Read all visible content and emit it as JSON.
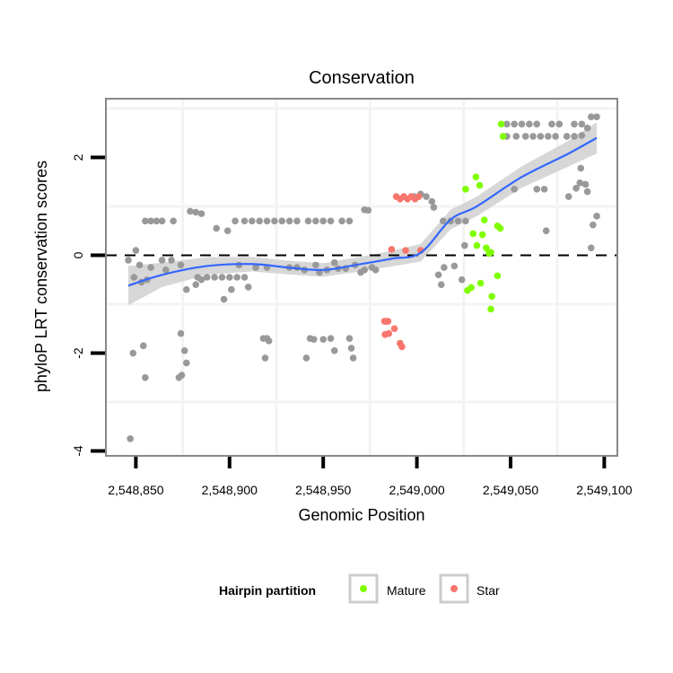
{
  "chart_data": {
    "type": "scatter",
    "title": "Conservation",
    "xlabel": "Genomic Position",
    "ylabel": "phyloP LRT conservation scores",
    "x_offset": 2548850,
    "xlim": [
      2548834,
      2549107
    ],
    "ylim": [
      -4.1,
      3.2
    ],
    "xticks": [
      2548850,
      2548900,
      2548950,
      2549000,
      2549050,
      2549100
    ],
    "xtick_labels": [
      "2,548,850",
      "2,548,900",
      "2,548,950",
      "2,549,000",
      "2,549,050",
      "2,549,100"
    ],
    "yticks": [
      -4,
      -2,
      0,
      2
    ],
    "ytick_labels": [
      "-4",
      "-2",
      "0",
      "2"
    ],
    "grid": true,
    "reference_line": {
      "y": 0,
      "style": "dashed"
    },
    "legend": {
      "title": "Hairpin partition",
      "placement": "bottom",
      "entries": [
        {
          "label": "Mature",
          "color": "#7FFF00"
        },
        {
          "label": "Star",
          "color": "#F8766D"
        }
      ]
    },
    "colors": {
      "other": "#999999",
      "mature": "#7FFF00",
      "star": "#F8766D",
      "smooth": "#3366FF",
      "band": "#D3D3D3"
    },
    "series": [
      {
        "name": "Other",
        "group": "other",
        "points": [
          [
            -4,
            -0.1
          ],
          [
            0,
            0.1
          ],
          [
            -1.5,
            -2.0
          ],
          [
            4,
            -1.85
          ],
          [
            5,
            -2.5
          ],
          [
            -3,
            -3.75
          ],
          [
            2,
            -0.2
          ],
          [
            5,
            0.7
          ],
          [
            8,
            0.7
          ],
          [
            11,
            0.7
          ],
          [
            14,
            0.7
          ],
          [
            20,
            0.7
          ],
          [
            14,
            -0.1
          ],
          [
            16,
            -0.3
          ],
          [
            8,
            -0.25
          ],
          [
            6,
            -0.5
          ],
          [
            19,
            -0.1
          ],
          [
            -1,
            -0.45
          ],
          [
            3,
            -0.55
          ],
          [
            29,
            0.9
          ],
          [
            32,
            0.88
          ],
          [
            35,
            0.85
          ],
          [
            24,
            -0.2
          ],
          [
            24,
            -1.6
          ],
          [
            27,
            -0.7
          ],
          [
            32,
            -0.6
          ],
          [
            35,
            -0.5
          ],
          [
            26,
            -1.95
          ],
          [
            27,
            -2.2
          ],
          [
            24.5,
            -2.45
          ],
          [
            23,
            -2.5
          ],
          [
            43,
            0.55
          ],
          [
            49,
            0.5
          ],
          [
            38,
            -0.45
          ],
          [
            42,
            -0.45
          ],
          [
            46,
            -0.45
          ],
          [
            50,
            -0.45
          ],
          [
            54,
            -0.45
          ],
          [
            58,
            -0.45
          ],
          [
            47,
            -0.9
          ],
          [
            51,
            -0.7
          ],
          [
            60,
            -0.65
          ],
          [
            33,
            -0.45
          ],
          [
            53,
            0.7
          ],
          [
            58,
            0.7
          ],
          [
            62,
            0.7
          ],
          [
            66,
            0.7
          ],
          [
            70,
            0.7
          ],
          [
            74,
            0.7
          ],
          [
            78,
            0.7
          ],
          [
            82,
            0.7
          ],
          [
            86,
            0.7
          ],
          [
            92,
            0.7
          ],
          [
            96,
            0.7
          ],
          [
            100,
            0.7
          ],
          [
            104,
            0.7
          ],
          [
            110,
            0.7
          ],
          [
            114,
            0.7
          ],
          [
            70,
            -0.25
          ],
          [
            64,
            -0.25
          ],
          [
            55,
            -0.2
          ],
          [
            68,
            -1.7
          ],
          [
            70,
            -1.7
          ],
          [
            71,
            -1.75
          ],
          [
            69,
            -2.1
          ],
          [
            91,
            -2.1
          ],
          [
            93,
            -1.7
          ],
          [
            95,
            -1.72
          ],
          [
            100,
            -1.72
          ],
          [
            104,
            -1.7
          ],
          [
            106,
            -1.95
          ],
          [
            114,
            -1.7
          ],
          [
            115,
            -1.9
          ],
          [
            116,
            -2.1
          ],
          [
            82,
            -0.25
          ],
          [
            86,
            -0.25
          ],
          [
            98,
            -0.35
          ],
          [
            108,
            -0.27
          ],
          [
            112,
            -0.27
          ],
          [
            106,
            -0.15
          ],
          [
            96,
            -0.2
          ],
          [
            117,
            -0.2
          ],
          [
            122,
            -0.3
          ],
          [
            90,
            -0.3
          ],
          [
            102,
            -0.3
          ],
          [
            122,
            0.93
          ],
          [
            124,
            0.92
          ],
          [
            126,
            -0.25
          ],
          [
            120,
            -0.35
          ],
          [
            128,
            -0.3
          ],
          [
            148.5,
            1.2
          ],
          [
            152,
            1.25
          ],
          [
            155,
            1.2
          ],
          [
            158,
            1.1
          ],
          [
            159,
            0.98
          ],
          [
            164,
            0.7
          ],
          [
            168,
            0.7
          ],
          [
            172,
            0.7
          ],
          [
            176,
            0.7
          ],
          [
            161.5,
            -0.4
          ],
          [
            163,
            -0.6
          ],
          [
            164.5,
            -0.25
          ],
          [
            170,
            -0.22
          ],
          [
            174,
            -0.5
          ],
          [
            175.5,
            0.2
          ],
          [
            202,
            1.35
          ],
          [
            214,
            1.35
          ],
          [
            218,
            1.35
          ],
          [
            231,
            1.2
          ],
          [
            235,
            1.37
          ],
          [
            237,
            1.48
          ],
          [
            240,
            1.45
          ],
          [
            241,
            1.3
          ],
          [
            219,
            0.5
          ],
          [
            244,
            0.62
          ],
          [
            246,
            0.8
          ],
          [
            243,
            0.15
          ],
          [
            237.5,
            1.78
          ],
          [
            198,
            2.68
          ],
          [
            202,
            2.68
          ],
          [
            206,
            2.68
          ],
          [
            210,
            2.68
          ],
          [
            214,
            2.68
          ],
          [
            222,
            2.68
          ],
          [
            226,
            2.68
          ],
          [
            234,
            2.68
          ],
          [
            238,
            2.68
          ],
          [
            243,
            2.83
          ],
          [
            246,
            2.83
          ],
          [
            198,
            2.43
          ],
          [
            203,
            2.43
          ],
          [
            208,
            2.43
          ],
          [
            212,
            2.43
          ],
          [
            216,
            2.43
          ],
          [
            220,
            2.43
          ],
          [
            224,
            2.43
          ],
          [
            230,
            2.43
          ],
          [
            234,
            2.43
          ],
          [
            238,
            2.45
          ],
          [
            241,
            2.6
          ]
        ]
      },
      {
        "name": "Star",
        "group": "star",
        "points": [
          [
            139,
            1.2
          ],
          [
            141,
            1.15
          ],
          [
            143,
            1.2
          ],
          [
            145,
            1.15
          ],
          [
            147,
            1.2
          ],
          [
            149,
            1.15
          ],
          [
            151,
            1.2
          ],
          [
            136.5,
            0.12
          ],
          [
            144,
            0.1
          ],
          [
            152,
            0.1
          ],
          [
            132.7,
            -1.35
          ],
          [
            133.7,
            -1.35
          ],
          [
            134.6,
            -1.35
          ],
          [
            133,
            -1.62
          ],
          [
            135,
            -1.6
          ],
          [
            138,
            -1.5
          ],
          [
            141,
            -1.8
          ],
          [
            142,
            -1.87
          ]
        ]
      },
      {
        "name": "Mature",
        "group": "mature",
        "points": [
          [
            195,
            2.68
          ],
          [
            196,
            2.43
          ],
          [
            176,
            1.35
          ],
          [
            181.5,
            1.6
          ],
          [
            183.5,
            1.43
          ],
          [
            186,
            0.72
          ],
          [
            193,
            0.6
          ],
          [
            194.5,
            0.55
          ],
          [
            180,
            0.44
          ],
          [
            185,
            0.42
          ],
          [
            182,
            0.2
          ],
          [
            187,
            0.15
          ],
          [
            188.5,
            0.04
          ],
          [
            189.5,
            0.06
          ],
          [
            193,
            -0.42
          ],
          [
            177,
            -0.72
          ],
          [
            179,
            -0.66
          ],
          [
            184,
            -0.57
          ],
          [
            190,
            -0.84
          ],
          [
            189.5,
            -1.1
          ]
        ]
      }
    ],
    "smooth": {
      "x": [
        -4,
        14,
        38,
        62,
        81,
        100,
        120,
        136.5,
        152,
        168,
        182,
        206,
        230,
        246
      ],
      "y": [
        -0.62,
        -0.4,
        -0.22,
        -0.18,
        -0.25,
        -0.3,
        -0.18,
        -0.07,
        0.05,
        0.73,
        1.0,
        1.6,
        2.06,
        2.4
      ],
      "se": [
        0.4,
        0.25,
        0.18,
        0.15,
        0.14,
        0.14,
        0.15,
        0.16,
        0.18,
        0.2,
        0.2,
        0.22,
        0.26,
        0.32
      ]
    }
  }
}
